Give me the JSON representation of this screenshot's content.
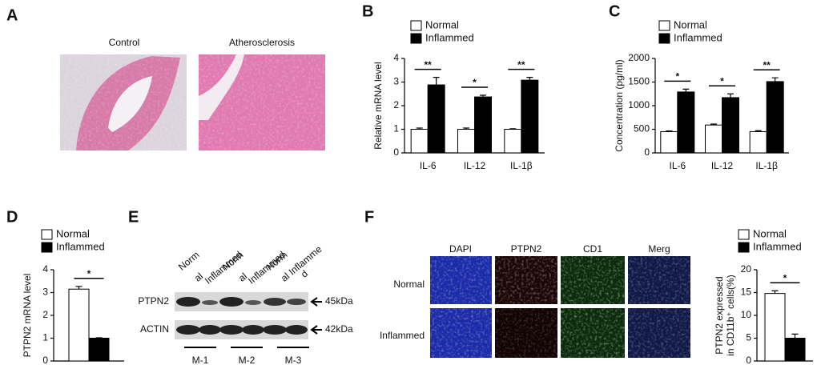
{
  "panel_labels": [
    "A",
    "B",
    "C",
    "D",
    "E",
    "F"
  ],
  "histology": {
    "titles": [
      "Control",
      "Atherosclerosis"
    ]
  },
  "blot": {
    "lanes": [
      "Norm",
      "al",
      "Inflammed",
      "Norm",
      "al",
      "Inflammed",
      "Norm",
      "al Inflamme",
      "d"
    ],
    "rows": [
      {
        "name": "PTPN2",
        "size": "45kDa"
      },
      {
        "name": "ACTIN",
        "size": "42kDa"
      }
    ],
    "groups": [
      "M-1",
      "M-2",
      "M-3"
    ]
  },
  "fluorescence": {
    "columns": [
      "DAPI",
      "PTPN2",
      "CD1",
      "Merg"
    ],
    "rows": [
      "Normal",
      "Inflammed"
    ]
  },
  "chart_data": [
    {
      "type": "bar",
      "ylabel": "Relative mRNA level",
      "categories": [
        "IL-6",
        "IL-12",
        "IL-1β"
      ],
      "series": [
        {
          "name": "Normal",
          "color": "#ffffff",
          "values": [
            1.0,
            1.0,
            1.0
          ],
          "errors": [
            0.05,
            0.05,
            0.02
          ]
        },
        {
          "name": "Inflammed",
          "color": "#000000",
          "values": [
            2.88,
            2.37,
            3.08
          ],
          "errors": [
            0.32,
            0.07,
            0.12
          ]
        }
      ],
      "significance": [
        "**",
        "*",
        "**"
      ],
      "ylim": [
        0,
        4
      ],
      "yticks": [
        0,
        1,
        2,
        3,
        4
      ]
    },
    {
      "type": "bar",
      "ylabel": "Concentration (pg/ml)",
      "categories": [
        "IL-6",
        "IL-12",
        "IL-1β"
      ],
      "series": [
        {
          "name": "Normal",
          "color": "#ffffff",
          "values": [
            450,
            590,
            450
          ],
          "errors": [
            15,
            20,
            20
          ]
        },
        {
          "name": "Inflammed",
          "color": "#000000",
          "values": [
            1290,
            1170,
            1510
          ],
          "errors": [
            60,
            80,
            80
          ]
        }
      ],
      "significance": [
        "*",
        "*",
        "**"
      ],
      "ylim": [
        0,
        2000
      ],
      "yticks": [
        0,
        500,
        1000,
        1500,
        2000
      ]
    },
    {
      "type": "bar",
      "ylabel": "PTPN2 mRNA level",
      "categories": [
        null
      ],
      "series": [
        {
          "name": "Normal",
          "color": "#ffffff",
          "values": [
            3.15
          ],
          "errors": [
            0.12
          ]
        },
        {
          "name": "Inflammed",
          "color": "#000000",
          "values": [
            1.0
          ],
          "errors": [
            0.02
          ]
        }
      ],
      "significance": [
        "*"
      ],
      "ylim": [
        0,
        4
      ],
      "yticks": [
        0,
        1,
        2,
        3,
        4
      ]
    },
    {
      "type": "bar",
      "ylabel": [
        "PTPN2 expressed",
        "in CD11b⁺ cells(%)"
      ],
      "categories": [
        null
      ],
      "series": [
        {
          "name": "Normal",
          "color": "#ffffff",
          "values": [
            14.8
          ],
          "errors": [
            0.6
          ]
        },
        {
          "name": "Inflammed",
          "color": "#000000",
          "values": [
            5.0
          ],
          "errors": [
            0.9
          ]
        }
      ],
      "significance": [
        "*"
      ],
      "ylim": [
        0,
        20
      ],
      "yticks": [
        0,
        5,
        10,
        15,
        20
      ]
    }
  ]
}
